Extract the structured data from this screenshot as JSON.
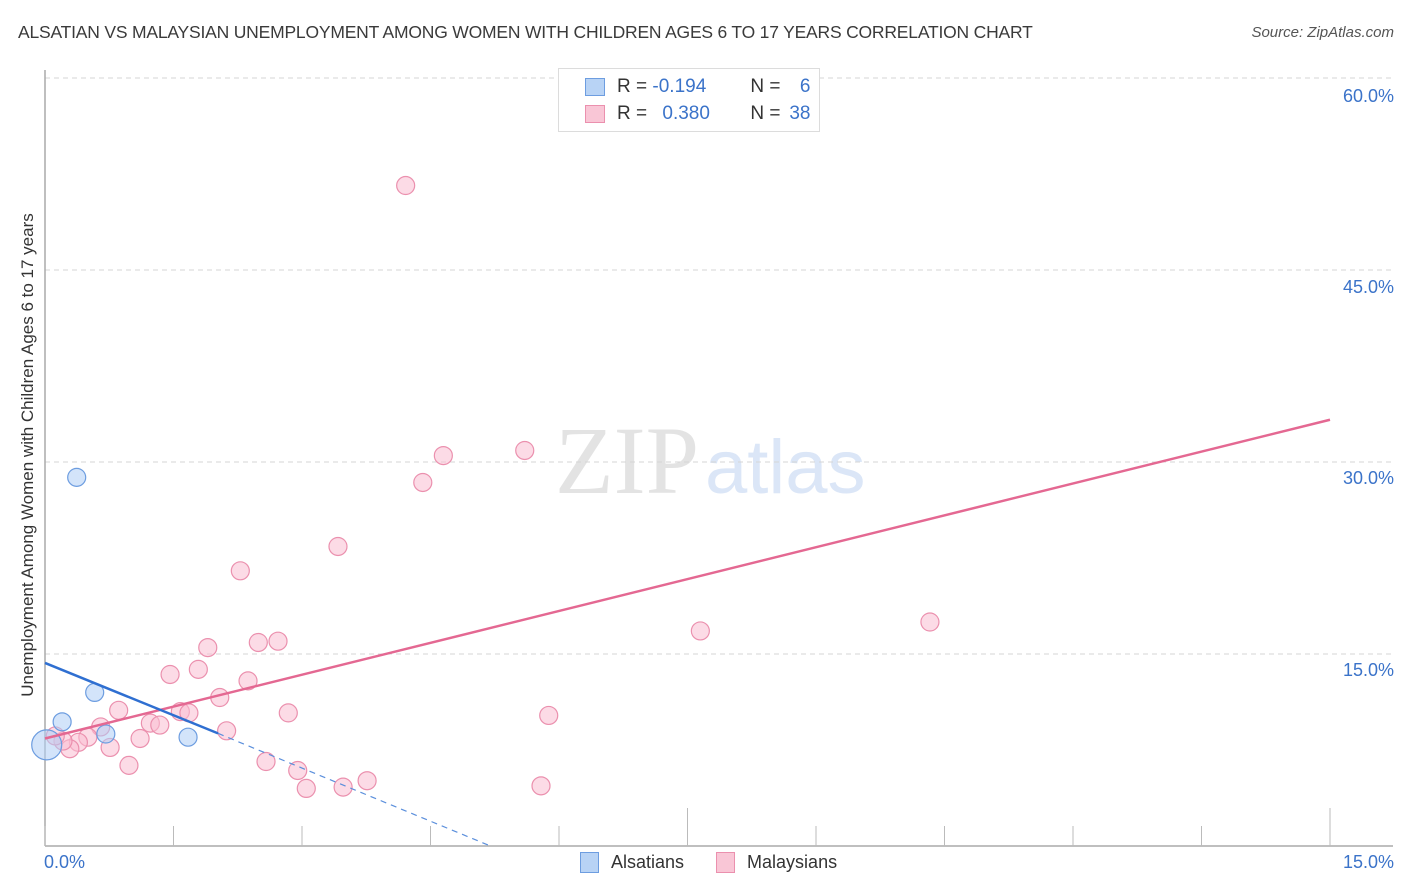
{
  "header": {
    "title": "ALSATIAN VS MALAYSIAN UNEMPLOYMENT AMONG WOMEN WITH CHILDREN AGES 6 TO 17 YEARS CORRELATION CHART",
    "source": "Source: ZipAtlas.com"
  },
  "watermark": {
    "zip": "ZIP",
    "atlas": "atlas"
  },
  "legend_top": {
    "rows": [
      {
        "series": "Alsatians",
        "r_label": "R =",
        "r_value": "-0.194",
        "n_label": "N =",
        "n_value": "6",
        "color": "#b8d3f5",
        "border": "#6d9de0"
      },
      {
        "series": "Malaysians",
        "r_label": "R =",
        "r_value": "0.380",
        "n_label": "N =",
        "n_value": "38",
        "color": "#f9c6d6",
        "border": "#eb90ae"
      }
    ]
  },
  "legend_bottom": {
    "items": [
      {
        "label": "Alsatians",
        "color": "#b8d3f5",
        "border": "#6d9de0"
      },
      {
        "label": "Malaysians",
        "color": "#f9c6d6",
        "border": "#eb90ae"
      }
    ]
  },
  "axes": {
    "ylabel": "Unemployment Among Women with Children Ages 6 to 17 years",
    "y_ticks": [
      "60.0%",
      "45.0%",
      "30.0%",
      "15.0%"
    ],
    "x_ticks": [
      "0.0%",
      "15.0%"
    ]
  },
  "chart_data": {
    "type": "scatter",
    "title": "ALSATIAN VS MALAYSIAN UNEMPLOYMENT AMONG WOMEN WITH CHILDREN AGES 6 TO 17 YEARS CORRELATION CHART",
    "xlabel": "",
    "ylabel": "Unemployment Among Women with Children Ages 6 to 17 years",
    "xlim": [
      0,
      15
    ],
    "ylim": [
      0,
      62
    ],
    "x_ticks": [
      0,
      15
    ],
    "y_ticks": [
      15,
      30,
      45,
      60
    ],
    "grid": "horizontal dashed",
    "legend_position": "bottom center",
    "series": [
      {
        "name": "Alsatians",
        "color": "#6d9de0",
        "R": -0.194,
        "N": 6,
        "points": [
          [
            0.37,
            28.8
          ],
          [
            0.58,
            12.0
          ],
          [
            0.2,
            9.7
          ],
          [
            0.71,
            8.75
          ],
          [
            1.67,
            8.5
          ],
          [
            0.02,
            7.9
          ]
        ],
        "trend": {
          "x": [
            0,
            2.02
          ],
          "y": [
            14.3,
            8.8
          ],
          "extrapolated_to": [
            5.2,
            0
          ]
        }
      },
      {
        "name": "Malaysians",
        "color": "#e46892",
        "R": 0.38,
        "N": 38,
        "points": [
          [
            4.21,
            51.6
          ],
          [
            4.65,
            30.5
          ],
          [
            5.6,
            30.9
          ],
          [
            4.41,
            28.4
          ],
          [
            3.42,
            23.4
          ],
          [
            2.28,
            21.5
          ],
          [
            7.65,
            16.8
          ],
          [
            10.33,
            17.5
          ],
          [
            2.72,
            16.0
          ],
          [
            2.49,
            15.9
          ],
          [
            1.9,
            15.5
          ],
          [
            1.46,
            13.4
          ],
          [
            1.79,
            13.8
          ],
          [
            2.37,
            12.9
          ],
          [
            2.04,
            11.6
          ],
          [
            0.86,
            10.6
          ],
          [
            1.23,
            9.6
          ],
          [
            1.34,
            9.45
          ],
          [
            1.58,
            10.5
          ],
          [
            1.68,
            10.4
          ],
          [
            2.84,
            10.4
          ],
          [
            5.88,
            10.2
          ],
          [
            2.12,
            9.0
          ],
          [
            0.65,
            9.3
          ],
          [
            0.5,
            8.5
          ],
          [
            0.39,
            8.1
          ],
          [
            0.29,
            7.6
          ],
          [
            0.21,
            8.2
          ],
          [
            0.12,
            8.6
          ],
          [
            0.76,
            7.7
          ],
          [
            1.11,
            8.4
          ],
          [
            0.98,
            6.3
          ],
          [
            2.58,
            6.6
          ],
          [
            2.95,
            5.9
          ],
          [
            3.05,
            4.5
          ],
          [
            3.48,
            4.6
          ],
          [
            3.76,
            5.1
          ],
          [
            5.79,
            4.7
          ]
        ],
        "trend": {
          "x": [
            0,
            15
          ],
          "y": [
            8.4,
            33.3
          ]
        }
      }
    ]
  }
}
